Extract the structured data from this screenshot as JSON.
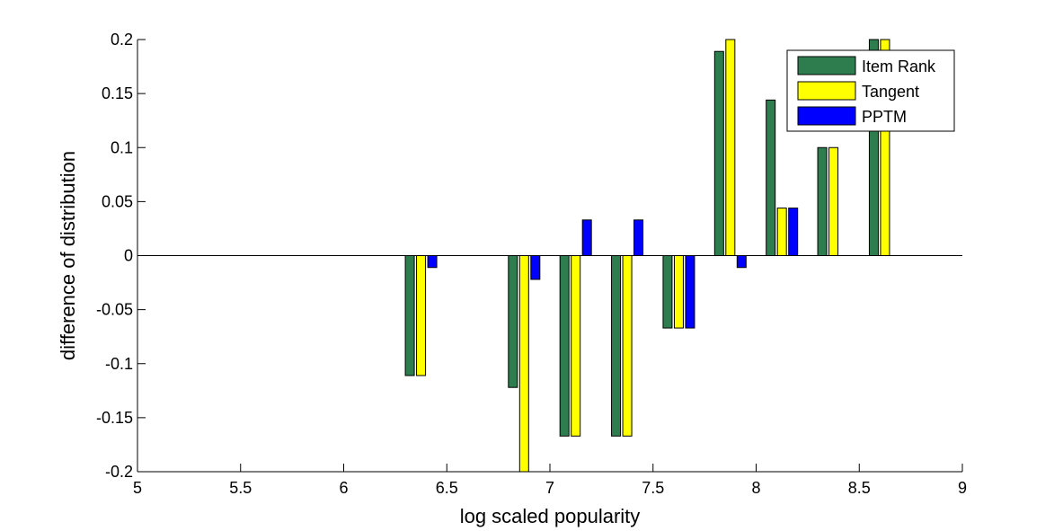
{
  "chart_data": {
    "type": "bar",
    "xlabel": "log scaled popularity",
    "ylabel": "difference of distribution",
    "xlim": [
      5,
      9
    ],
    "ylim": [
      -0.2,
      0.2
    ],
    "xticks": [
      "5",
      "5.5",
      "6",
      "6.5",
      "7",
      "7.5",
      "8",
      "8.5",
      "9"
    ],
    "yticks": [
      "-0.2",
      "-0.15",
      "-0.1",
      "-0.05",
      "0",
      "0.05",
      "0.1",
      "0.15",
      "0.2"
    ],
    "grid": false,
    "legend_position": "top-right",
    "x": [
      6.375,
      6.875,
      7.125,
      7.375,
      7.625,
      7.875,
      8.125,
      8.375,
      8.625
    ],
    "series": [
      {
        "name": "Item Rank",
        "color": "#2e7d4f",
        "values": [
          -0.111,
          -0.122,
          -0.167,
          -0.167,
          -0.067,
          0.189,
          0.144,
          0.1,
          0.2
        ]
      },
      {
        "name": "Tangent",
        "color": "#ffff00",
        "values": [
          -0.111,
          -0.2,
          -0.167,
          -0.167,
          -0.067,
          0.2,
          0.044,
          0.1,
          0.2
        ]
      },
      {
        "name": "PPTM",
        "color": "#0000ff",
        "values": [
          -0.011,
          -0.022,
          0.033,
          0.033,
          -0.067,
          -0.011,
          0.044,
          0,
          0
        ]
      }
    ]
  }
}
